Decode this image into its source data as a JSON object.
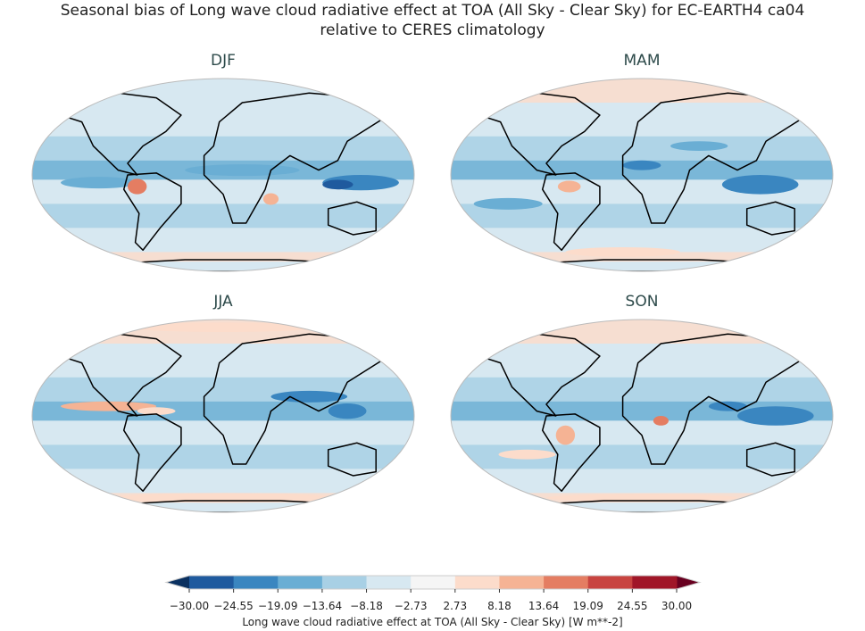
{
  "title_line1": "Seasonal bias of Long wave cloud radiative effect at TOA (All Sky - Clear Sky) for EC-EARTH4 ca04",
  "title_line2": "relative to CERES climatology",
  "panels": [
    {
      "label": "DJF"
    },
    {
      "label": "MAM"
    },
    {
      "label": "JJA"
    },
    {
      "label": "SON"
    }
  ],
  "colorbar": {
    "label": "Long wave cloud radiative effect at TOA (All Sky - Clear Sky) [W m**-2]",
    "ticks": [
      "−30.00",
      "−24.55",
      "−19.09",
      "−13.64",
      "−8.18",
      "−2.73",
      "2.73",
      "8.18",
      "13.64",
      "19.09",
      "24.55",
      "30.00"
    ],
    "colors": [
      "#1f5a9e",
      "#3a86c0",
      "#6aaed4",
      "#a8d0e5",
      "#d7e8f1",
      "#f5f5f5",
      "#fcdccb",
      "#f5b394",
      "#e47d62",
      "#c84440",
      "#a01628"
    ],
    "under_color": "#0a3060",
    "over_color": "#680020",
    "range": [
      -30,
      30
    ],
    "extend": "both"
  }
}
